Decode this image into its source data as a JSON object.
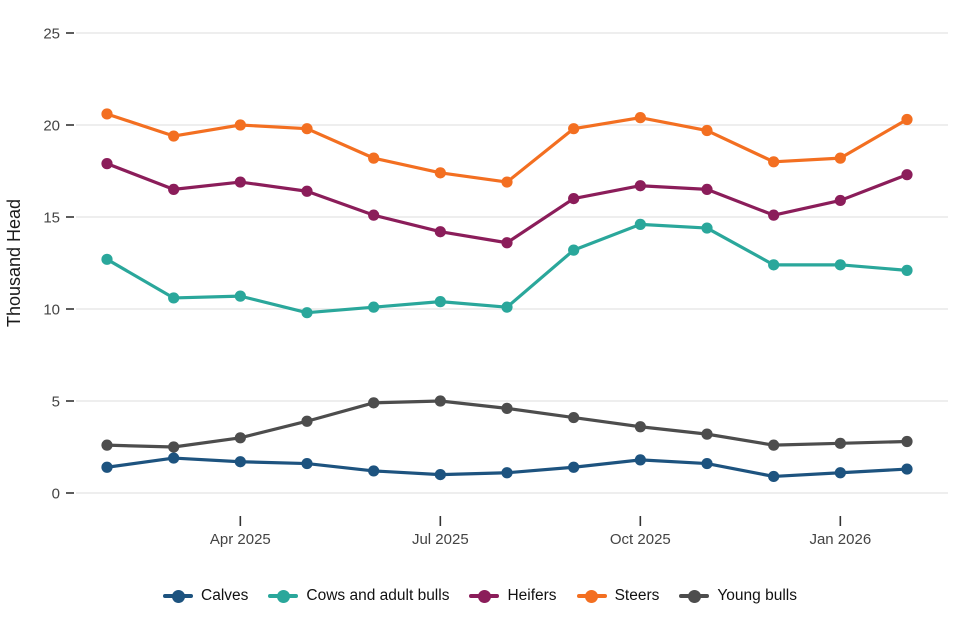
{
  "chart_data": {
    "type": "line",
    "title": "",
    "xlabel": "",
    "ylabel": "Thousand Head",
    "ylim": [
      0,
      25
    ],
    "yticks": [
      0,
      5,
      10,
      15,
      20,
      25
    ],
    "grid": "horizontal-major",
    "legend_position": "bottom",
    "categories": [
      "Feb 2025",
      "Mar 2025",
      "Apr 2025",
      "May 2025",
      "Jun 2025",
      "Jul 2025",
      "Aug 2025",
      "Sep 2025",
      "Oct 2025",
      "Nov 2025",
      "Dec 2025",
      "Jan 2026",
      "Feb 2026"
    ],
    "xtick_labels": [
      {
        "index": 2,
        "label": "Apr 2025"
      },
      {
        "index": 5,
        "label": "Jul 2025"
      },
      {
        "index": 8,
        "label": "Oct 2025"
      },
      {
        "index": 11,
        "label": "Jan 2026"
      }
    ],
    "series": [
      {
        "name": "Calves",
        "color": "#1d537f",
        "values": [
          1.4,
          1.9,
          1.7,
          1.6,
          1.2,
          1.0,
          1.1,
          1.4,
          1.8,
          1.6,
          0.9,
          1.1,
          1.3
        ]
      },
      {
        "name": "Cows and adult bulls",
        "color": "#2aa79b",
        "values": [
          12.7,
          10.6,
          10.7,
          9.8,
          10.1,
          10.4,
          10.1,
          13.2,
          14.6,
          14.4,
          12.4,
          12.4,
          12.1
        ]
      },
      {
        "name": "Heifers",
        "color": "#8b1d5a",
        "values": [
          17.9,
          16.5,
          16.9,
          16.4,
          15.1,
          14.2,
          13.6,
          16.0,
          16.7,
          16.5,
          15.1,
          15.9,
          17.3
        ]
      },
      {
        "name": "Steers",
        "color": "#f36f21",
        "values": [
          20.6,
          19.4,
          20.0,
          19.8,
          18.2,
          17.4,
          16.9,
          19.8,
          20.4,
          19.7,
          18.0,
          18.2,
          20.3
        ]
      },
      {
        "name": "Young bulls",
        "color": "#4d4d4d",
        "values": [
          2.6,
          2.5,
          3.0,
          3.9,
          4.9,
          5.0,
          4.6,
          4.1,
          3.6,
          3.2,
          2.6,
          2.7,
          2.8
        ]
      }
    ]
  },
  "colors": {
    "background": "#ffffff",
    "grid": "#e4e4e4",
    "tick": "#333333",
    "tick_label": "#444444",
    "axis_title": "#1a1a1a"
  }
}
